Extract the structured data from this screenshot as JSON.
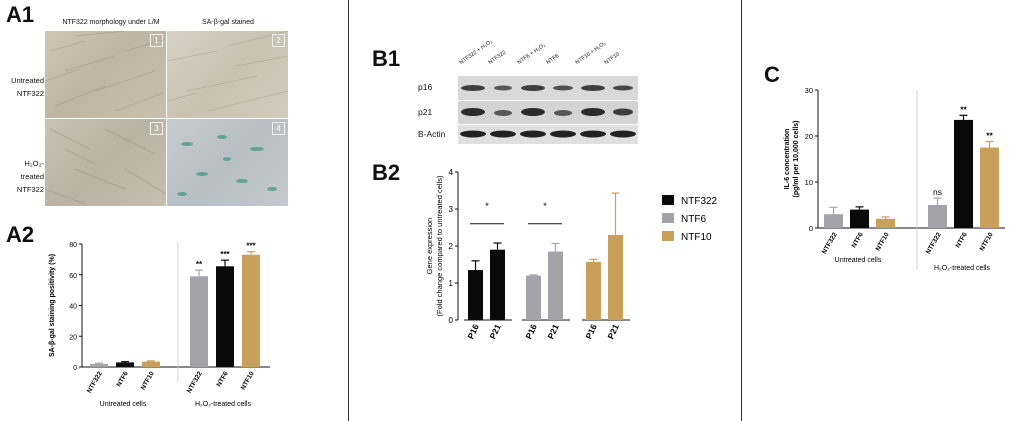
{
  "panels": {
    "a1": "A1",
    "a2": "A2",
    "b1": "B1",
    "b2": "B2",
    "c": "C"
  },
  "a1": {
    "col_headers": [
      "NTF322 morphology under L/M",
      "SA-β-gal stained"
    ],
    "row_labels": [
      [
        "Untreated",
        "NTF322"
      ],
      [
        "H₂O₂-treated",
        "NTF322"
      ]
    ],
    "image_numbers": [
      "1",
      "2",
      "3",
      "4"
    ]
  },
  "b1": {
    "lane_labels": [
      "NTF322 + H₂O₂",
      "NTF322",
      "NTF6 + H₂O₂",
      "NTF6",
      "NTF10 + H₂O₂",
      "NTF10"
    ],
    "bands": [
      "p16",
      "p21",
      "B-Actin"
    ]
  },
  "colors": {
    "ntf322": "#0a0a0a",
    "ntf6": "#a3a3a9",
    "ntf10": "#c9a05a",
    "axis": "#111111"
  },
  "chart_data": [
    {
      "id": "a2",
      "type": "bar",
      "ylabel": "SA-β-gal staining positivity (%)",
      "ylim": [
        0,
        80
      ],
      "yticks": [
        0,
        20,
        40,
        60,
        80
      ],
      "groups": [
        {
          "label": "Untreated cells",
          "categories": [
            "NTF322",
            "NTF6",
            "NTF10"
          ],
          "values": [
            2,
            3,
            3.5
          ],
          "errors": [
            0.5,
            0.5,
            0.5
          ],
          "colors": [
            "ntf6",
            "ntf322",
            "ntf10"
          ],
          "sig": [
            "",
            "",
            ""
          ]
        },
        {
          "label": "H₂O₂-treated cells",
          "categories": [
            "NTF322",
            "NTF6",
            "NTF10"
          ],
          "values": [
            59,
            65.5,
            73
          ],
          "errors": [
            4,
            4,
            2
          ],
          "colors": [
            "ntf6",
            "ntf322",
            "ntf10"
          ],
          "sig": [
            "**",
            "***",
            "***"
          ]
        }
      ]
    },
    {
      "id": "b2",
      "type": "bar",
      "ylabel": "Gene expression",
      "ylabel2": "(Fold change compared to untreated cells)",
      "ylim": [
        0,
        4
      ],
      "yticks": [
        0,
        1,
        2,
        3,
        4
      ],
      "groups": [
        {
          "categories": [
            "P16",
            "P21"
          ],
          "values": [
            1.35,
            1.9
          ],
          "errors": [
            0.25,
            0.18
          ],
          "color": "ntf322"
        },
        {
          "categories": [
            "P16",
            "P21"
          ],
          "values": [
            1.2,
            1.85
          ],
          "errors": [
            0.02,
            0.22
          ],
          "color": "ntf6"
        },
        {
          "categories": [
            "P16",
            "P21"
          ],
          "values": [
            1.57,
            2.3
          ],
          "errors": [
            0.07,
            1.13
          ],
          "color": "ntf10"
        }
      ],
      "significance": [
        "*",
        "*"
      ],
      "legend": [
        {
          "name": "NTF322",
          "color": "ntf322"
        },
        {
          "name": "NTF6",
          "color": "ntf6"
        },
        {
          "name": "NTF10",
          "color": "ntf10"
        }
      ]
    },
    {
      "id": "c",
      "type": "bar",
      "ylabel": "IL-6 concentration",
      "ylabel2": "(pg/ml per 10,000 cells)",
      "ylim": [
        0,
        30
      ],
      "yticks": [
        0,
        10,
        20,
        30
      ],
      "groups": [
        {
          "label": "Untreated cells",
          "categories": [
            "NTF322",
            "NTF6",
            "NTF10"
          ],
          "values": [
            3,
            4,
            2
          ],
          "errors": [
            1.5,
            0.6,
            0.4
          ],
          "colors": [
            "ntf6",
            "ntf322",
            "ntf10"
          ],
          "sig": [
            "",
            "",
            ""
          ]
        },
        {
          "label": "H₂O₂-treated cells",
          "categories": [
            "NTF322",
            "NTF6",
            "NTF10"
          ],
          "values": [
            5,
            23.5,
            17.5
          ],
          "errors": [
            1.5,
            1.0,
            1.3
          ],
          "colors": [
            "ntf6",
            "ntf322",
            "ntf10"
          ],
          "sig": [
            "ns",
            "**",
            "**"
          ]
        }
      ]
    }
  ]
}
